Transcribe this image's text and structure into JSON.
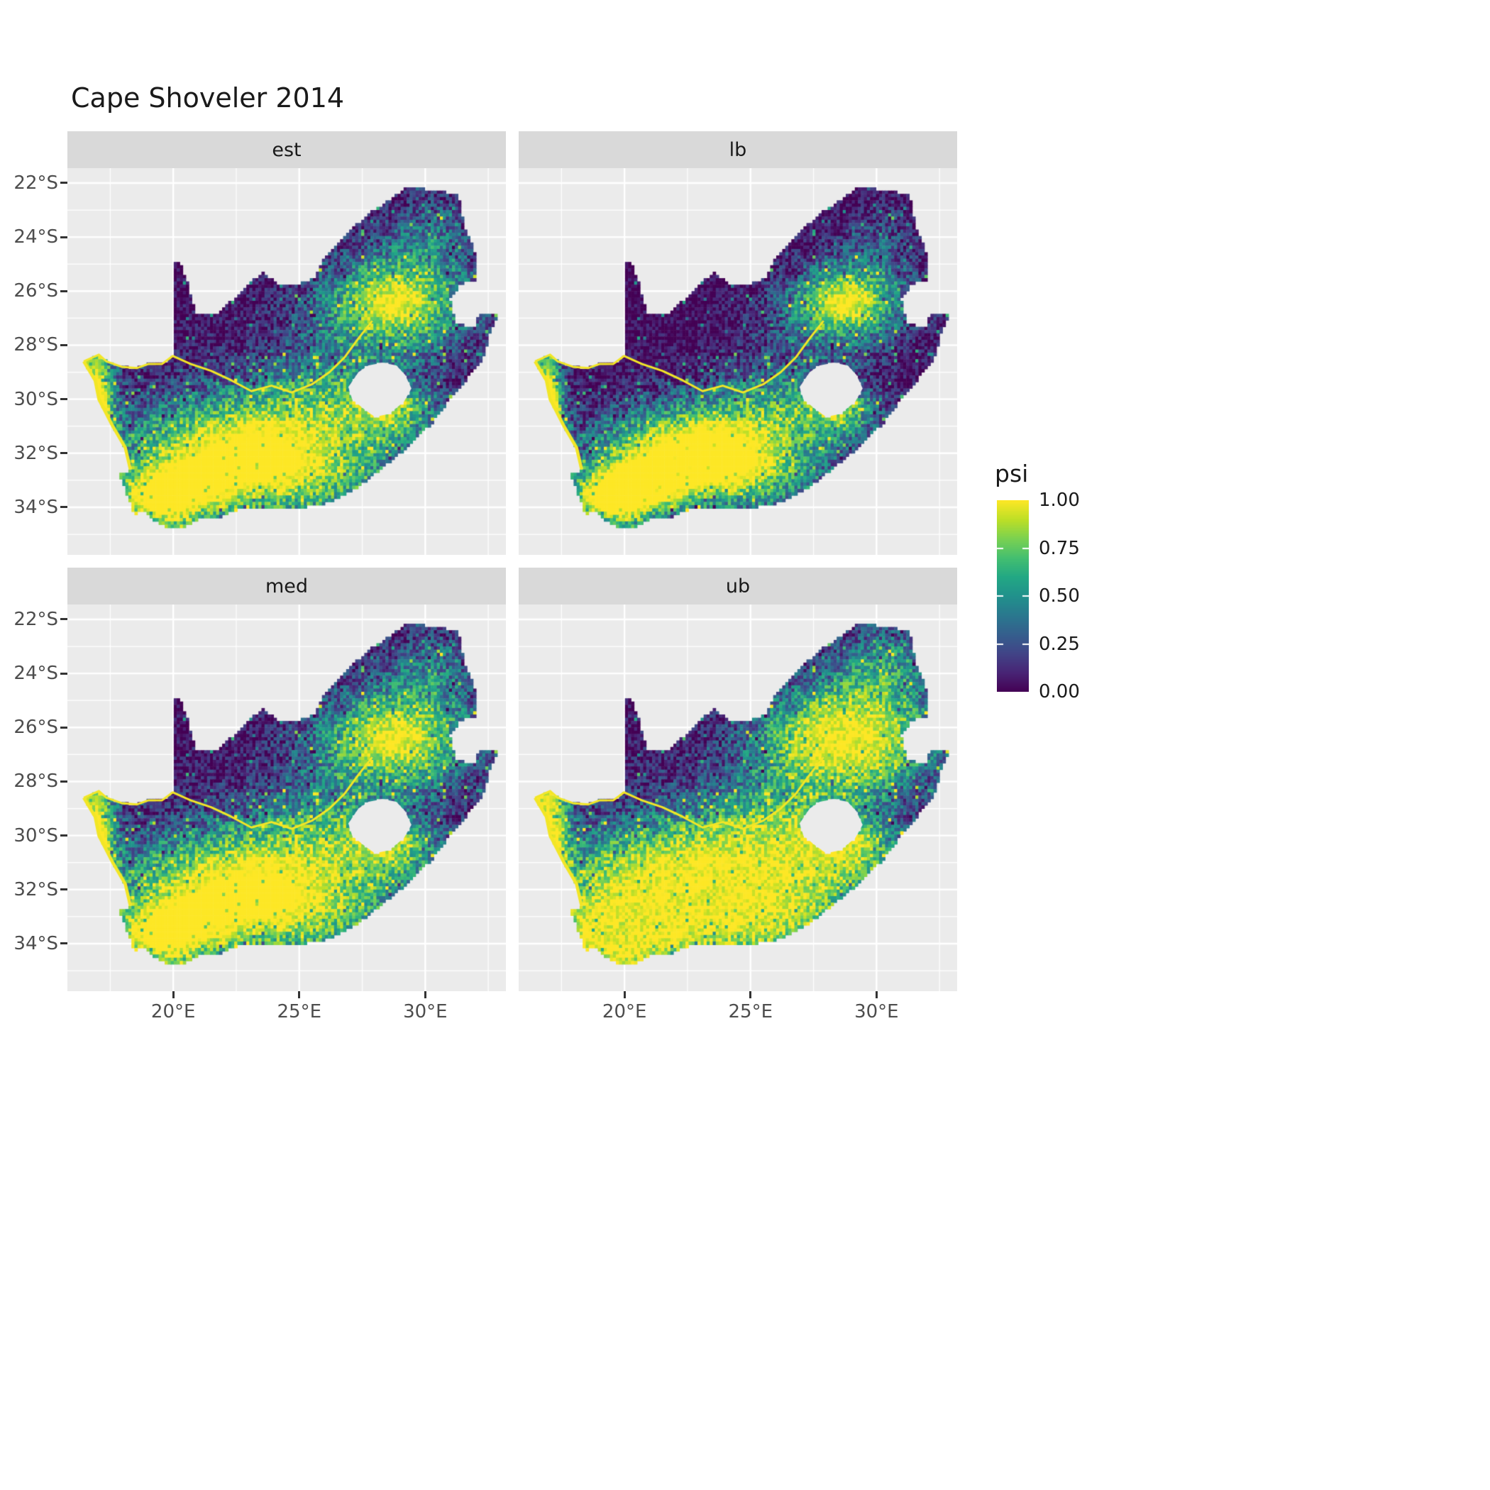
{
  "chart_data": {
    "type": "heatmap",
    "subtype": "faceted raster occupancy map of South Africa on viridis colour scale",
    "title": "Cape Shoveler 2014",
    "facets": [
      {
        "label": "est",
        "value_shift": 0.0
      },
      {
        "label": "lb",
        "value_shift": -0.17
      },
      {
        "label": "med",
        "value_shift": 0.05
      },
      {
        "label": "ub",
        "value_shift": 0.22
      }
    ],
    "x_axis": {
      "range": [
        15.8,
        33.2
      ],
      "ticks": [
        {
          "value": 20,
          "label": "20°E"
        },
        {
          "value": 25,
          "label": "25°E"
        },
        {
          "value": 30,
          "label": "30°E"
        }
      ],
      "minor": [
        17.5,
        22.5,
        27.5,
        32.5
      ]
    },
    "y_axis": {
      "range": [
        -21.45,
        -35.76
      ],
      "ticks": [
        {
          "value": -22,
          "label": "22°S"
        },
        {
          "value": -24,
          "label": "24°S"
        },
        {
          "value": -26,
          "label": "26°S"
        },
        {
          "value": -28,
          "label": "28°S"
        },
        {
          "value": -30,
          "label": "30°S"
        },
        {
          "value": -32,
          "label": "32°S"
        },
        {
          "value": -34,
          "label": "34°S"
        }
      ],
      "minor": [
        -23,
        -25,
        -27,
        -29,
        -31,
        -33,
        -35
      ]
    },
    "legend": {
      "title": "psi",
      "range": [
        0,
        1
      ],
      "ticks": [
        {
          "value": 1.0,
          "label": "1.00"
        },
        {
          "value": 0.75,
          "label": "0.75"
        },
        {
          "value": 0.5,
          "label": "0.50"
        },
        {
          "value": 0.25,
          "label": "0.25"
        },
        {
          "value": 0.0,
          "label": "0.00"
        }
      ]
    },
    "colormap": {
      "name": "viridis",
      "stops": [
        [
          0.0,
          "#440154"
        ],
        [
          0.1,
          "#482475"
        ],
        [
          0.2,
          "#414487"
        ],
        [
          0.3,
          "#355f8d"
        ],
        [
          0.4,
          "#2a788e"
        ],
        [
          0.5,
          "#21918c"
        ],
        [
          0.6,
          "#22a884"
        ],
        [
          0.7,
          "#44bf70"
        ],
        [
          0.8,
          "#7ad151"
        ],
        [
          0.9,
          "#bddf26"
        ],
        [
          1.0,
          "#fde725"
        ]
      ]
    },
    "map": {
      "line_color": "#f2e626",
      "outline": [
        [
          16.45,
          -28.6
        ],
        [
          17.05,
          -28.35
        ],
        [
          17.35,
          -28.6
        ],
        [
          17.95,
          -28.8
        ],
        [
          18.55,
          -28.85
        ],
        [
          19.0,
          -28.7
        ],
        [
          19.55,
          -28.7
        ],
        [
          19.98,
          -28.4
        ],
        [
          19.98,
          -24.9
        ],
        [
          20.25,
          -24.9
        ],
        [
          20.55,
          -25.6
        ],
        [
          20.7,
          -26.2
        ],
        [
          20.9,
          -26.85
        ],
        [
          21.7,
          -26.85
        ],
        [
          22.25,
          -26.4
        ],
        [
          22.9,
          -25.85
        ],
        [
          23.5,
          -25.3
        ],
        [
          24.2,
          -25.75
        ],
        [
          25.0,
          -25.75
        ],
        [
          25.6,
          -25.5
        ],
        [
          25.95,
          -24.75
        ],
        [
          26.5,
          -24.3
        ],
        [
          27.2,
          -23.6
        ],
        [
          27.95,
          -23.0
        ],
        [
          28.6,
          -22.6
        ],
        [
          29.2,
          -22.2
        ],
        [
          29.9,
          -22.2
        ],
        [
          30.6,
          -22.3
        ],
        [
          31.3,
          -22.4
        ],
        [
          31.55,
          -23.6
        ],
        [
          31.95,
          -24.4
        ],
        [
          32.02,
          -25.1
        ],
        [
          32.05,
          -25.65
        ],
        [
          31.4,
          -25.72
        ],
        [
          31.0,
          -26.3
        ],
        [
          31.2,
          -27.2
        ],
        [
          31.97,
          -27.32
        ],
        [
          32.12,
          -26.85
        ],
        [
          32.88,
          -26.85
        ],
        [
          32.55,
          -27.6
        ],
        [
          32.3,
          -28.5
        ],
        [
          31.7,
          -29.2
        ],
        [
          31.05,
          -29.9
        ],
        [
          30.25,
          -30.9
        ],
        [
          29.4,
          -31.7
        ],
        [
          28.5,
          -32.4
        ],
        [
          27.4,
          -33.2
        ],
        [
          26.4,
          -33.75
        ],
        [
          25.65,
          -33.95
        ],
        [
          25.0,
          -34.0
        ],
        [
          24.2,
          -34.1
        ],
        [
          23.4,
          -34.1
        ],
        [
          22.6,
          -34.05
        ],
        [
          21.8,
          -34.4
        ],
        [
          21.0,
          -34.45
        ],
        [
          20.5,
          -34.7
        ],
        [
          20.0,
          -34.82
        ],
        [
          19.4,
          -34.6
        ],
        [
          19.1,
          -34.35
        ],
        [
          18.8,
          -34.1
        ],
        [
          18.45,
          -34.35
        ],
        [
          18.3,
          -33.9
        ],
        [
          18.0,
          -33.1
        ],
        [
          17.85,
          -32.8
        ],
        [
          18.3,
          -32.6
        ],
        [
          18.1,
          -31.8
        ],
        [
          17.6,
          -31.0
        ],
        [
          17.05,
          -30.0
        ],
        [
          16.9,
          -29.3
        ]
      ],
      "lesotho_hole": [
        [
          26.95,
          -29.55
        ],
        [
          27.35,
          -29.0
        ],
        [
          27.75,
          -28.75
        ],
        [
          28.3,
          -28.65
        ],
        [
          28.85,
          -28.75
        ],
        [
          29.2,
          -29.1
        ],
        [
          29.45,
          -29.6
        ],
        [
          29.15,
          -30.1
        ],
        [
          28.55,
          -30.55
        ],
        [
          28.0,
          -30.65
        ],
        [
          27.55,
          -30.35
        ],
        [
          27.1,
          -30.0
        ]
      ],
      "orange_river": [
        [
          16.45,
          -28.6
        ],
        [
          17.05,
          -28.35
        ],
        [
          17.35,
          -28.6
        ],
        [
          17.95,
          -28.8
        ],
        [
          18.55,
          -28.85
        ],
        [
          19.0,
          -28.7
        ],
        [
          19.55,
          -28.7
        ],
        [
          19.98,
          -28.4
        ],
        [
          20.7,
          -28.7
        ],
        [
          21.5,
          -28.95
        ],
        [
          22.3,
          -29.3
        ],
        [
          23.1,
          -29.7
        ],
        [
          23.9,
          -29.5
        ],
        [
          24.7,
          -29.75
        ],
        [
          25.5,
          -29.45
        ],
        [
          26.2,
          -29.0
        ],
        [
          26.8,
          -28.45
        ],
        [
          27.35,
          -27.75
        ],
        [
          27.9,
          -27.1
        ]
      ],
      "west_coast": [
        [
          16.45,
          -28.6
        ],
        [
          16.9,
          -29.3
        ],
        [
          17.05,
          -30.0
        ],
        [
          17.6,
          -31.0
        ],
        [
          18.1,
          -31.8
        ],
        [
          18.3,
          -32.6
        ]
      ]
    },
    "psi_pattern": {
      "base": 0.04,
      "cell_size_deg": 0.12,
      "blobs": [
        [
          28.8,
          -26.4,
          2.0,
          1.2,
          0.95
        ],
        [
          26.3,
          -30.5,
          2.4,
          1.7,
          0.6
        ],
        [
          21.8,
          -31.8,
          2.8,
          1.4,
          0.85
        ],
        [
          19.5,
          -33.8,
          1.6,
          0.9,
          0.85
        ],
        [
          24.8,
          -33.2,
          3.0,
          1.0,
          0.45
        ],
        [
          16.95,
          -30.2,
          0.5,
          2.0,
          1.05
        ],
        [
          28.9,
          -30.4,
          1.1,
          0.8,
          0.45
        ],
        [
          30.3,
          -23.8,
          1.2,
          1.0,
          0.3
        ]
      ]
    },
    "colors": {
      "panel_bg": "#ebebeb",
      "strip_bg": "#d9d9d9",
      "grid": "#ffffff",
      "tick": "#333333",
      "axis_text": "#4d4d4d",
      "title_text": "#1a1a1a"
    }
  }
}
